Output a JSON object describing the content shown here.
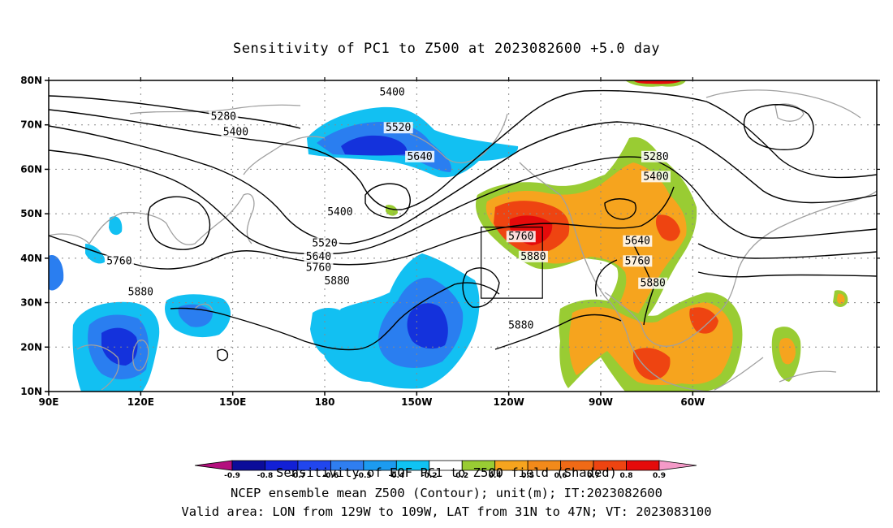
{
  "title": "Sensitivity of PC1 to Z500 at 2023082600 +5.0 day",
  "map": {
    "lat_ticks": [
      "80N",
      "70N",
      "60N",
      "50N",
      "40N",
      "30N",
      "20N",
      "10N"
    ],
    "lon_ticks": [
      "90E",
      "120E",
      "150E",
      "180",
      "150W",
      "120W",
      "90W",
      "60W"
    ],
    "contour_labels": [
      {
        "text": "5280",
        "lon": 147,
        "lat": 71.5
      },
      {
        "text": "5400",
        "lon": 151,
        "lat": 68
      },
      {
        "text": "5400",
        "lon": -158,
        "lat": 77
      },
      {
        "text": "5520",
        "lon": -156,
        "lat": 69
      },
      {
        "text": "5640",
        "lon": -149,
        "lat": 62.5
      },
      {
        "text": "5280",
        "lon": -72,
        "lat": 62.5
      },
      {
        "text": "5400",
        "lon": -72,
        "lat": 58
      },
      {
        "text": "5400",
        "lon": -175,
        "lat": 50
      },
      {
        "text": "5520",
        "lon": -180,
        "lat": 43
      },
      {
        "text": "5640",
        "lon": -182,
        "lat": 40
      },
      {
        "text": "5760",
        "lon": -182,
        "lat": 37.5
      },
      {
        "text": "5760",
        "lon": 113,
        "lat": 39
      },
      {
        "text": "5880",
        "lon": 120,
        "lat": 32
      },
      {
        "text": "5880",
        "lon": -176,
        "lat": 34.5
      },
      {
        "text": "5760",
        "lon": -116,
        "lat": 44.5
      },
      {
        "text": "5880",
        "lon": -112,
        "lat": 40
      },
      {
        "text": "5880",
        "lon": -116,
        "lat": 24.5
      },
      {
        "text": "5640",
        "lon": -78,
        "lat": 43.5
      },
      {
        "text": "5760",
        "lon": -78,
        "lat": 39
      },
      {
        "text": "5880",
        "lon": -73,
        "lat": 34
      }
    ],
    "valid_area": {
      "lon_west": -129,
      "lon_east": -109,
      "lat_south": 31,
      "lat_north": 47
    }
  },
  "colorbar": {
    "tick_labels": [
      "-0.9",
      "-0.8",
      "-0.7",
      "-0.6",
      "-0.5",
      "-0.4",
      "-0.2",
      "0.2",
      "0.4",
      "0.5",
      "0.6",
      "0.7",
      "0.8",
      "0.9"
    ],
    "colors": [
      "#b4107e",
      "#0b0c9a",
      "#1220d6",
      "#2146ee",
      "#2f7ef0",
      "#1c9bf0",
      "#10c3f3",
      "#ffffff",
      "#99cc33",
      "#f6a41e",
      "#f28a1a",
      "#f06a16",
      "#ee4411",
      "#e50b0b",
      "#f49ac8"
    ]
  },
  "footer": {
    "line1": "Sensitivity of EOF PC1 to Z500 field (Shaded)",
    "line2": "NCEP ensemble mean Z500 (Contour); unit(m); IT:2023082600",
    "line3": "Valid area: LON from 129W to 109W, LAT from 31N to 47N; VT: 2023083100"
  },
  "style": {
    "negative_strong": "#1432dc",
    "negative_mid": "#2a7ef0",
    "negative_weak": "#12c0f2",
    "positive_weak": "#99cc33",
    "positive_mid": "#f6a41e",
    "positive_strong": "#ee4411",
    "positive_max": "#e50b0b",
    "coastline": "#a0a0a0",
    "contour": "#000000"
  }
}
